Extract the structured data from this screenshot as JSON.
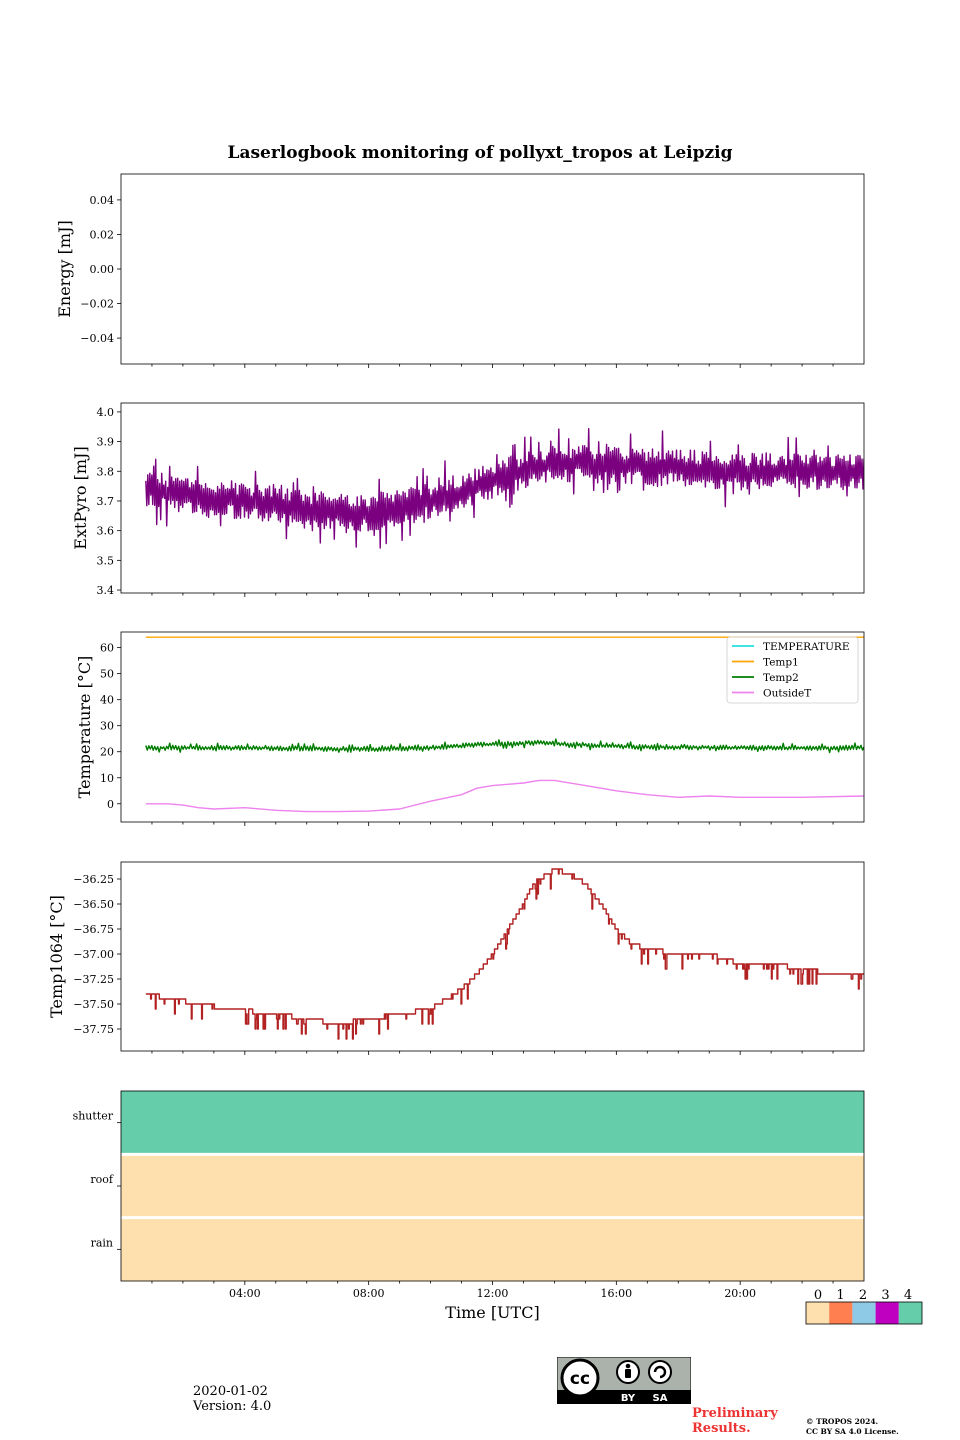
{
  "title": "Laserlogbook monitoring of pollyxt_tropos at Leipzig",
  "colors": {
    "extpyro": "#7b0080",
    "temperature": "#22e0e0",
    "temp1": "#ffa500",
    "temp2": "#007d00",
    "outsideT": "#ee82ee",
    "temp1064": "#b22222",
    "flag_0": "#fde0ad",
    "flag_1": "#ff7f50",
    "flag_2": "#8ecae6",
    "flag_3": "#c000c0",
    "flag_4": "#66cdaa"
  },
  "chart_data": [
    {
      "id": "energy",
      "type": "line",
      "ylabel": "Energy [mJ]",
      "ylim": [
        -0.055,
        0.055
      ],
      "yticks": [
        0.04,
        0.02,
        0.0,
        -0.02,
        -0.04
      ],
      "ytick_labels": [
        "0.04",
        "0.02",
        "0.00",
        "−0.02",
        "−0.04"
      ],
      "series": []
    },
    {
      "id": "extpyro",
      "type": "line",
      "ylabel": "ExtPyro [mJ]",
      "ylim": [
        3.39,
        4.03
      ],
      "yticks": [
        4.0,
        3.9,
        3.8,
        3.7,
        3.6,
        3.5,
        3.4
      ],
      "ytick_labels": [
        "4.0",
        "3.9",
        "3.8",
        "3.7",
        "3.6",
        "3.5",
        "3.4"
      ],
      "series": [
        {
          "name": "ExtPyro",
          "color_key": "extpyro",
          "trend_hours": [
            0.8,
            2,
            4,
            6,
            8,
            10,
            11,
            12,
            13,
            14,
            16,
            18,
            20,
            22,
            24
          ],
          "trend_values": [
            3.74,
            3.72,
            3.7,
            3.67,
            3.66,
            3.7,
            3.73,
            3.77,
            3.8,
            3.83,
            3.82,
            3.81,
            3.8,
            3.8,
            3.8
          ],
          "noise_amplitude": 0.09
        }
      ]
    },
    {
      "id": "temperature",
      "type": "line",
      "ylabel": "Temperature [°C]",
      "ylim": [
        -7,
        66
      ],
      "yticks": [
        60,
        50,
        40,
        30,
        20,
        10,
        0
      ],
      "ytick_labels": [
        "60",
        "50",
        "40",
        "30",
        "20",
        "10",
        "0"
      ],
      "legend_position": "top-right",
      "series": [
        {
          "name": "TEMPERATURE",
          "color_key": "temperature",
          "hours": [],
          "values": []
        },
        {
          "name": "Temp1",
          "color_key": "temp1",
          "hours": [
            0.8,
            24
          ],
          "values": [
            64,
            64
          ]
        },
        {
          "name": "Temp2",
          "color_key": "temp2",
          "trend_hours": [
            0.8,
            4,
            8,
            10,
            12,
            13.5,
            16,
            20,
            24
          ],
          "trend_values": [
            21.5,
            21.5,
            21,
            21.5,
            23,
            23.5,
            22,
            21.5,
            21.5
          ],
          "noise_amplitude": 1.4
        },
        {
          "name": "OutsideT",
          "color_key": "outsideT",
          "hours": [
            0.8,
            1.5,
            2,
            2.5,
            3,
            4,
            5,
            6,
            7,
            8,
            9,
            10,
            11,
            11.5,
            12,
            13,
            13.5,
            14,
            15,
            16,
            17,
            18,
            19,
            20,
            22,
            24
          ],
          "values": [
            0,
            0,
            -0.5,
            -1.5,
            -2,
            -1.5,
            -2.5,
            -3,
            -3,
            -2.8,
            -2,
            1,
            3.5,
            6,
            7,
            8,
            9,
            9,
            7,
            5,
            3.5,
            2.5,
            3,
            2.5,
            2.5,
            3
          ]
        }
      ]
    },
    {
      "id": "temp1064",
      "type": "line",
      "ylabel": "Temp1064 [°C]",
      "ylim": [
        -37.97,
        -36.08
      ],
      "yticks": [
        -36.25,
        -36.5,
        -36.75,
        -37.0,
        -37.25,
        -37.5,
        -37.75
      ],
      "ytick_labels": [
        "−36.25",
        "−36.50",
        "−36.75",
        "−37.00",
        "−37.25",
        "−37.50",
        "−37.75"
      ],
      "series": [
        {
          "name": "Temp1064",
          "color_key": "temp1064",
          "hours": [
            0.8,
            2.5,
            3.5,
            5,
            6,
            7,
            8,
            9,
            10,
            10.5,
            11,
            11.5,
            12,
            12.5,
            13,
            13.3,
            14,
            14.5,
            15,
            15.5,
            16,
            16.5,
            17,
            18,
            19,
            20,
            21,
            22,
            23,
            24
          ],
          "values": [
            -37.4,
            -37.5,
            -37.55,
            -37.6,
            -37.65,
            -37.7,
            -37.65,
            -37.6,
            -37.55,
            -37.45,
            -37.35,
            -37.2,
            -37.0,
            -36.75,
            -36.5,
            -36.3,
            -36.15,
            -36.2,
            -36.3,
            -36.5,
            -36.75,
            -36.9,
            -36.95,
            -37.0,
            -37.0,
            -37.1,
            -37.1,
            -37.15,
            -37.2,
            -37.2
          ],
          "noise_amplitude": 0.1
        }
      ]
    },
    {
      "id": "flags",
      "type": "heatmap",
      "rows": [
        "shutter",
        "roof",
        "rain"
      ],
      "row_values": [
        4,
        0,
        0
      ],
      "xlabel": "Time [UTC]",
      "xlim_hours": [
        0,
        24
      ],
      "xticks_hours": [
        4,
        8,
        12,
        16,
        20
      ],
      "xtick_labels": [
        "04:00",
        "08:00",
        "12:00",
        "16:00",
        "20:00"
      ],
      "colorbar_ticks": [
        "0",
        "1",
        "2",
        "3",
        "4"
      ]
    }
  ],
  "footer": {
    "date": "2020-01-02",
    "version": "Version: 4.0",
    "preliminary_line1": "Preliminary",
    "preliminary_line2": "Results.",
    "copyright_line1": "© TROPOS 2024.",
    "copyright_line2": "CC BY SA 4.0 License.",
    "license_badge_text_by": "BY",
    "license_badge_text_sa": "SA"
  }
}
